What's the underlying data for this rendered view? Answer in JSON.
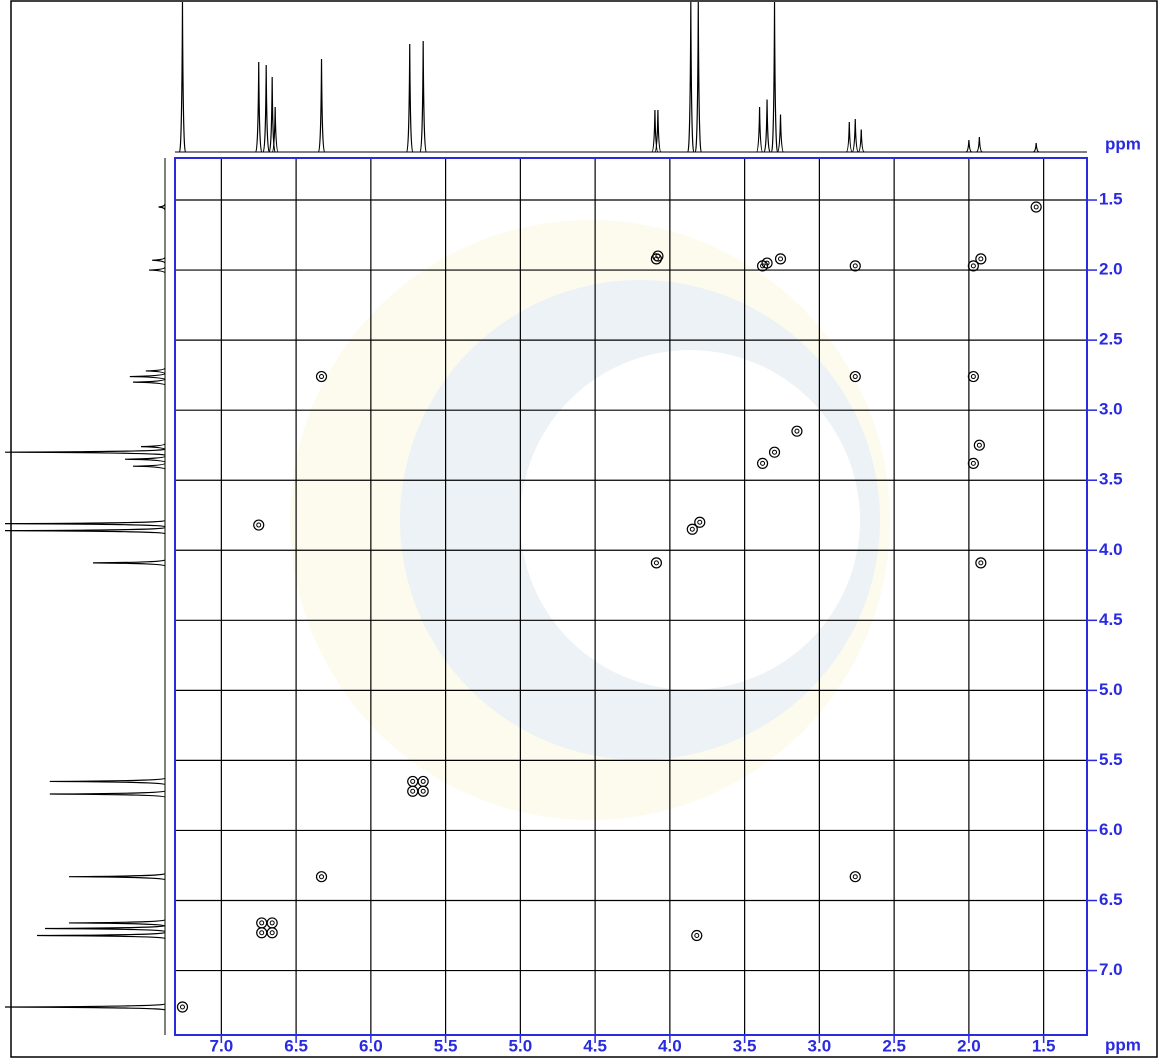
{
  "chart_data": {
    "type": "contour",
    "x_label": "ppm",
    "y_label": "ppm",
    "xlim": [
      7.31,
      1.21
    ],
    "ylim": [
      1.2,
      7.46
    ],
    "xticks": [
      {
        "value": 7.0,
        "label": "7.0"
      },
      6.5,
      {
        "value": 6.0,
        "label": "6.0"
      },
      5.5,
      {
        "value": 5.0,
        "label": "5.0"
      },
      4.5,
      {
        "value": 4.0,
        "label": "4.0"
      },
      3.5,
      {
        "value": 3.0,
        "label": "3.0"
      },
      2.5,
      {
        "value": 2.0,
        "label": "2.0"
      },
      1.5
    ],
    "yticks": [
      1.5,
      {
        "value": 2.0,
        "label": "2.0"
      },
      2.5,
      {
        "value": 3.0,
        "label": "3.0"
      },
      3.5,
      {
        "value": 4.0,
        "label": "4.0"
      },
      4.5,
      {
        "value": 5.0,
        "label": "5.0"
      },
      5.5,
      {
        "value": 6.0,
        "label": "6.0"
      },
      6.5,
      {
        "value": 7.0,
        "label": "7.0"
      }
    ],
    "grid": true,
    "axis_color": "#2a2ae0",
    "color": "#000000",
    "x": [
      7.26,
      6.73,
      6.66,
      6.73,
      6.66,
      6.33,
      5.72,
      5.65,
      4.09,
      3.85,
      3.8,
      3.38,
      3.3,
      3.15,
      2.76,
      1.97,
      1.92,
      1.55,
      5.72,
      5.65,
      4.09,
      1.92,
      3.38,
      1.97,
      2.76,
      1.97,
      6.33,
      2.76,
      3.82,
      6.75,
      1.93,
      3.35,
      4.08,
      3.26
    ],
    "values": [
      7.26,
      6.66,
      6.73,
      6.73,
      6.66,
      6.33,
      5.72,
      5.65,
      4.09,
      3.85,
      3.8,
      3.38,
      3.3,
      3.15,
      2.76,
      1.97,
      1.92,
      1.55,
      5.65,
      5.72,
      1.92,
      4.09,
      1.97,
      3.38,
      1.97,
      2.76,
      2.76,
      6.33,
      6.75,
      3.82,
      3.25,
      1.95,
      1.9,
      1.92
    ],
    "top_projection": {
      "x": [
        7.26,
        6.75,
        6.7,
        6.66,
        6.64,
        6.33,
        5.74,
        5.65,
        4.1,
        4.08,
        3.86,
        3.81,
        3.4,
        3.35,
        3.3,
        3.26,
        2.8,
        2.76,
        2.72,
        2.0,
        1.93,
        1.55
      ],
      "heights": [
        1.0,
        0.6,
        0.58,
        0.5,
        0.3,
        0.62,
        0.72,
        0.74,
        0.28,
        0.28,
        1.0,
        1.0,
        0.3,
        0.35,
        1.0,
        0.25,
        0.2,
        0.22,
        0.15,
        0.08,
        0.1,
        0.06
      ]
    },
    "left_projection": {
      "y": [
        7.26,
        6.75,
        6.7,
        6.66,
        6.33,
        5.74,
        5.65,
        4.09,
        3.86,
        3.81,
        3.4,
        3.35,
        3.3,
        3.26,
        2.8,
        2.76,
        2.72,
        2.0,
        1.93,
        1.55
      ],
      "heights": [
        1.0,
        0.8,
        0.75,
        0.6,
        0.6,
        0.72,
        0.72,
        0.45,
        1.0,
        1.0,
        0.2,
        0.25,
        1.0,
        0.15,
        0.2,
        0.22,
        0.12,
        0.1,
        0.08,
        0.04
      ]
    }
  }
}
